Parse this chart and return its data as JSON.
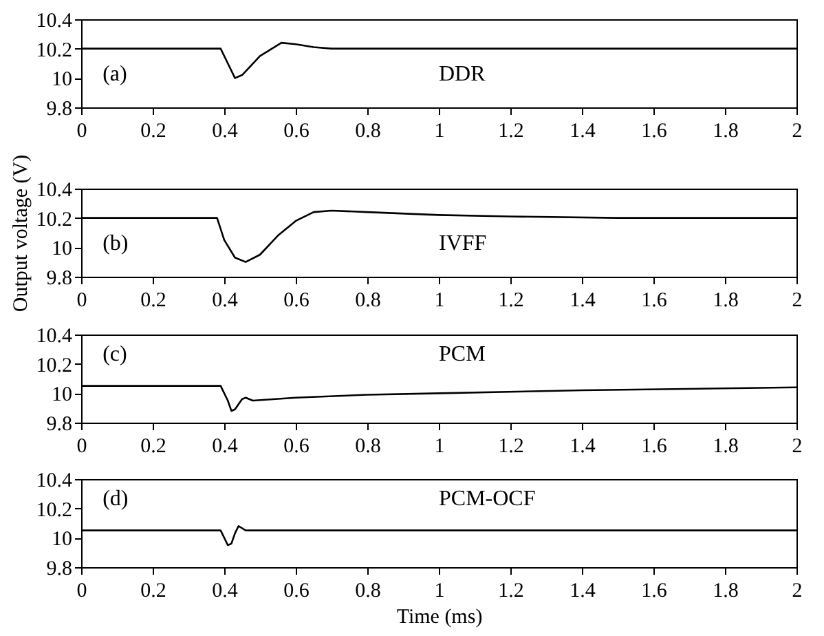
{
  "chart_data": [
    {
      "type": "line",
      "annotations": [
        "(a)",
        "DDR"
      ],
      "x": [
        0,
        0.39,
        0.41,
        0.43,
        0.45,
        0.5,
        0.56,
        0.6,
        0.65,
        0.7,
        1.0,
        1.5,
        2
      ],
      "series": [
        {
          "color": "#000000",
          "values": [
            10.2,
            10.2,
            10.1,
            10.0,
            10.02,
            10.15,
            10.24,
            10.23,
            10.21,
            10.2,
            10.2,
            10.2,
            10.2
          ]
        }
      ],
      "xlim": [
        0,
        2
      ],
      "xticks": [
        0,
        0.2,
        0.4,
        0.6,
        0.8,
        1,
        1.2,
        1.4,
        1.6,
        1.8,
        2
      ],
      "ylim": [
        9.8,
        10.4
      ],
      "yticks": [
        9.8,
        10,
        10.2,
        10.4
      ],
      "grid": false
    },
    {
      "type": "line",
      "ylabel": "Output voltage (V)",
      "annotations": [
        "(b)",
        "IVFF"
      ],
      "x": [
        0,
        0.38,
        0.4,
        0.43,
        0.46,
        0.5,
        0.55,
        0.6,
        0.65,
        0.7,
        0.8,
        1.0,
        1.2,
        1.5,
        2
      ],
      "series": [
        {
          "color": "#000000",
          "values": [
            10.2,
            10.2,
            10.05,
            9.93,
            9.9,
            9.95,
            10.08,
            10.18,
            10.24,
            10.25,
            10.24,
            10.22,
            10.21,
            10.2,
            10.2
          ]
        }
      ],
      "xlim": [
        0,
        2
      ],
      "xticks": [
        0,
        0.2,
        0.4,
        0.6,
        0.8,
        1,
        1.2,
        1.4,
        1.6,
        1.8,
        2
      ],
      "ylim": [
        9.8,
        10.4
      ],
      "yticks": [
        9.8,
        10,
        10.2,
        10.4
      ],
      "grid": false
    },
    {
      "type": "line",
      "annotations": [
        "(c)",
        "PCM"
      ],
      "x": [
        0,
        0.39,
        0.41,
        0.42,
        0.43,
        0.45,
        0.46,
        0.48,
        0.6,
        0.8,
        1.0,
        1.4,
        2
      ],
      "series": [
        {
          "color": "#000000",
          "values": [
            10.05,
            10.05,
            9.95,
            9.88,
            9.89,
            9.96,
            9.97,
            9.95,
            9.97,
            9.99,
            10.0,
            10.02,
            10.04
          ]
        }
      ],
      "xlim": [
        0,
        2
      ],
      "xticks": [
        0,
        0.2,
        0.4,
        0.6,
        0.8,
        1,
        1.2,
        1.4,
        1.6,
        1.8,
        2
      ],
      "ylim": [
        9.8,
        10.4
      ],
      "yticks": [
        9.8,
        10,
        10.2,
        10.4
      ],
      "grid": false
    },
    {
      "type": "line",
      "xlabel": "Time (ms)",
      "annotations": [
        "(d)",
        "PCM-OCF"
      ],
      "x": [
        0,
        0.39,
        0.41,
        0.42,
        0.43,
        0.44,
        0.46,
        2
      ],
      "series": [
        {
          "color": "#000000",
          "values": [
            10.05,
            10.05,
            9.95,
            9.96,
            10.03,
            10.08,
            10.05,
            10.05
          ]
        }
      ],
      "xlim": [
        0,
        2
      ],
      "xticks": [
        0,
        0.2,
        0.4,
        0.6,
        0.8,
        1,
        1.2,
        1.4,
        1.6,
        1.8,
        2
      ],
      "ylim": [
        9.8,
        10.4
      ],
      "yticks": [
        9.8,
        10,
        10.2,
        10.4
      ],
      "grid": false
    }
  ]
}
